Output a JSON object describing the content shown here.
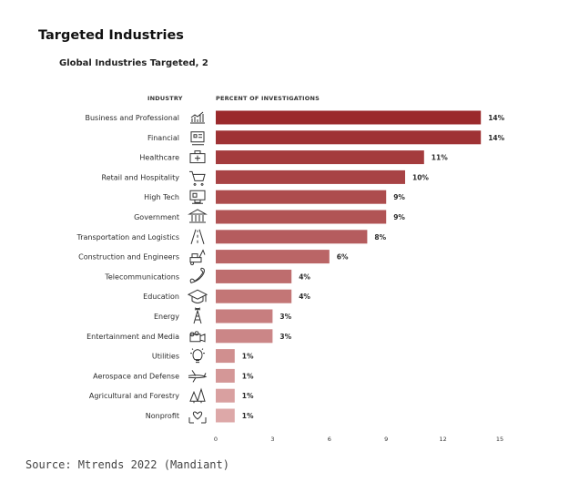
{
  "page": {
    "title": "Targeted Industries",
    "source": "Source: Mtrends 2022 (Mandiant)"
  },
  "chart_data": {
    "type": "bar",
    "orientation": "horizontal",
    "title": "Global Industries Targeted, 2",
    "category_header": "INDUSTRY",
    "value_header": "PERCENT OF INVESTIGATIONS",
    "categories": [
      "Business and Professional",
      "Financial",
      "Healthcare",
      "Retail and Hospitality",
      "High Tech",
      "Government",
      "Transportation and Logistics",
      "Construction and Engineers",
      "Telecommunications",
      "Education",
      "Energy",
      "Entertainment and Media",
      "Utilities",
      "Aerospace and Defense",
      "Agricultural and Forestry",
      "Nonprofit"
    ],
    "icons": [
      "bar-chart-icon",
      "money-icon",
      "medical-kit-icon",
      "shopping-cart-icon",
      "computer-icon",
      "government-building-icon",
      "road-icon",
      "excavator-icon",
      "phone-icon",
      "graduation-cap-icon",
      "oil-rig-icon",
      "video-camera-icon",
      "lightbulb-icon",
      "airplane-icon",
      "trees-icon",
      "hands-heart-icon"
    ],
    "values": [
      14,
      14,
      11,
      10,
      9,
      9,
      8,
      6,
      4,
      4,
      3,
      3,
      1,
      1,
      1,
      1
    ],
    "value_labels": [
      "14%",
      "14%",
      "11%",
      "10%",
      "9%",
      "9%",
      "8%",
      "6%",
      "4%",
      "4%",
      "3%",
      "3%",
      "1%",
      "1%",
      "1%",
      "1%"
    ],
    "xlim": [
      0,
      15
    ],
    "xticks": [
      0,
      3,
      6,
      9,
      12,
      15
    ],
    "bar_color_start": "#9b2a2c",
    "bar_color_end": "#dda8a8"
  }
}
